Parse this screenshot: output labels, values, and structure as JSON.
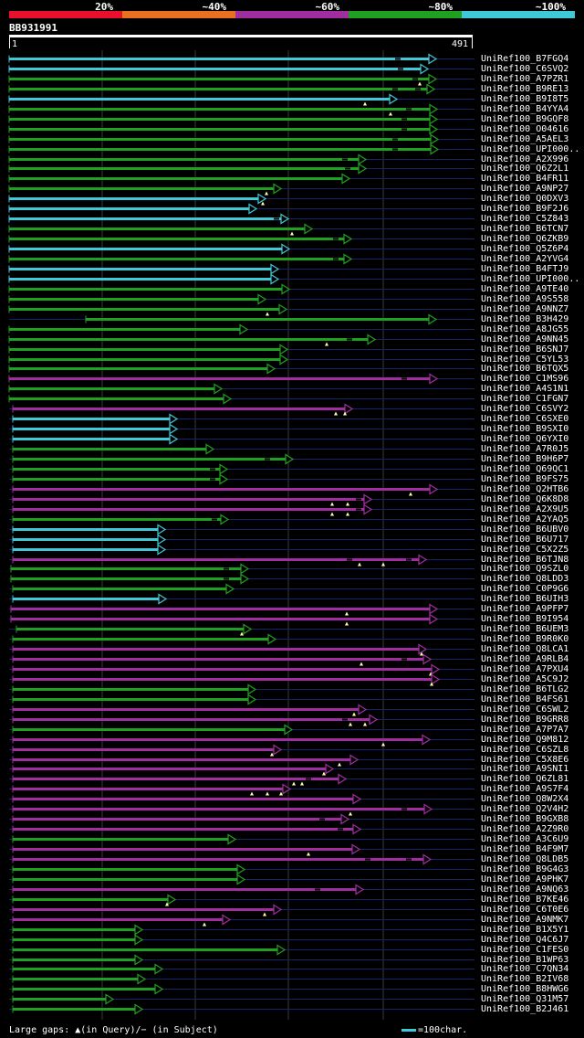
{
  "legend": {
    "labels": [
      "20%",
      "~40%",
      "~60%",
      "~80%",
      "~100%"
    ],
    "colors": [
      "#e8102a",
      "#e87020",
      "#a02ea0",
      "#20a020",
      "#3ec8d8"
    ]
  },
  "query": {
    "name": "BB931991",
    "start": "1",
    "end": "491"
  },
  "footer": {
    "gaps": "Large gaps: ▲(in Query)/− (in Subject)",
    "scale": "=100char."
  },
  "hits": [
    {
      "name": "UniRef100_B7FGQ4",
      "c": 4,
      "s": 10,
      "e": 477,
      "g": [
        433
      ]
    },
    {
      "name": "UniRef100_C6SVQ2",
      "c": 4,
      "s": 10,
      "e": 468,
      "g": [
        436
      ]
    },
    {
      "name": "UniRef100_A7PZR1",
      "c": 3,
      "s": 10,
      "e": 477,
      "g": [
        452
      ],
      "t": [
        460
      ]
    },
    {
      "name": "UniRef100_B9RE13",
      "c": 3,
      "s": 10,
      "e": 475,
      "g": [
        430,
        455
      ]
    },
    {
      "name": "UniRef100_B9I8T5",
      "c": 4,
      "s": 10,
      "e": 434,
      "t": [
        400
      ]
    },
    {
      "name": "UniRef100_B4YYA4",
      "c": 3,
      "s": 10,
      "e": 478,
      "g": [
        445
      ],
      "t": [
        428
      ]
    },
    {
      "name": "UniRef100_B9GQF8",
      "c": 3,
      "s": 10,
      "e": 478,
      "g": [
        440
      ]
    },
    {
      "name": "UniRef100_O04616",
      "c": 3,
      "s": 10,
      "e": 478,
      "g": [
        440
      ]
    },
    {
      "name": "UniRef100_A5AEL3",
      "c": 3,
      "s": 10,
      "e": 479,
      "g": [
        430
      ]
    },
    {
      "name": "UniRef100_UPI000..",
      "c": 3,
      "s": 10,
      "e": 479,
      "g": [
        430
      ]
    },
    {
      "name": "UniRef100_A2X996",
      "c": 3,
      "s": 10,
      "e": 400,
      "g": [
        375
      ]
    },
    {
      "name": "UniRef100_Q6Z2L1",
      "c": 3,
      "s": 10,
      "e": 400,
      "g": [
        378
      ]
    },
    {
      "name": "UniRef100_B4FR11",
      "c": 3,
      "s": 10,
      "e": 382
    },
    {
      "name": "UniRef100_A9NP27",
      "c": 3,
      "s": 10,
      "e": 307,
      "t": [
        292
      ]
    },
    {
      "name": "UniRef100_Q0DXV3",
      "c": 4,
      "s": 10,
      "e": 290,
      "t": [
        288
      ]
    },
    {
      "name": "UniRef100_B9F2J6",
      "c": 4,
      "s": 10,
      "e": 280
    },
    {
      "name": "UniRef100_C5Z843",
      "c": 4,
      "s": 10,
      "e": 315,
      "g": [
        300
      ]
    },
    {
      "name": "UniRef100_B6TCN7",
      "c": 3,
      "s": 10,
      "e": 341,
      "t": [
        320
      ]
    },
    {
      "name": "UniRef100_Q6ZKB9",
      "c": 3,
      "s": 10,
      "e": 384,
      "g": [
        365
      ]
    },
    {
      "name": "UniRef100_Q5Z6P4",
      "c": 4,
      "s": 10,
      "e": 316
    },
    {
      "name": "UniRef100_A2YVG4",
      "c": 3,
      "s": 10,
      "e": 384,
      "g": [
        365
      ]
    },
    {
      "name": "UniRef100_B4FTJ9",
      "c": 4,
      "s": 10,
      "e": 304
    },
    {
      "name": "UniRef100_UPI000..",
      "c": 4,
      "s": 10,
      "e": 304
    },
    {
      "name": "UniRef100_A9TE40",
      "c": 3,
      "s": 10,
      "e": 316
    },
    {
      "name": "UniRef100_A9S558",
      "c": 3,
      "s": 10,
      "e": 290
    },
    {
      "name": "UniRef100_A9NNZ7",
      "c": 3,
      "s": 10,
      "e": 313,
      "t": [
        293
      ]
    },
    {
      "name": "UniRef100_B3H429",
      "c": 3,
      "s": 94,
      "e": 477
    },
    {
      "name": "UniRef100_A8JG55",
      "c": 3,
      "s": 10,
      "e": 270
    },
    {
      "name": "UniRef100_A9NN45",
      "c": 3,
      "s": 10,
      "e": 410,
      "g": [
        380
      ],
      "t": [
        358
      ]
    },
    {
      "name": "UniRef100_B6SNJ7",
      "c": 3,
      "s": 10,
      "e": 314
    },
    {
      "name": "UniRef100_C5YL53",
      "c": 3,
      "s": 10,
      "e": 314
    },
    {
      "name": "UniRef100_B6TQX5",
      "c": 3,
      "s": 10,
      "e": 300
    },
    {
      "name": "UniRef100_C1MS96",
      "c": 2,
      "s": 10,
      "e": 478,
      "g": [
        440
      ]
    },
    {
      "name": "UniRef100_A4S1N1",
      "c": 3,
      "s": 10,
      "e": 242
    },
    {
      "name": "UniRef100_C1FGN7",
      "c": 3,
      "s": 10,
      "e": 252
    },
    {
      "name": "UniRef100_C6SVY2",
      "c": 2,
      "s": 14,
      "e": 385,
      "t": [
        368,
        378
      ]
    },
    {
      "name": "UniRef100_C6SXE0",
      "c": 4,
      "s": 14,
      "e": 193
    },
    {
      "name": "UniRef100_B9SXI0",
      "c": 4,
      "s": 14,
      "e": 193
    },
    {
      "name": "UniRef100_Q6YXI0",
      "c": 4,
      "s": 14,
      "e": 193
    },
    {
      "name": "UniRef100_A7R0J5",
      "c": 3,
      "s": 14,
      "e": 233
    },
    {
      "name": "UniRef100_B9H6P7",
      "c": 3,
      "s": 14,
      "e": 320,
      "g": [
        290
      ]
    },
    {
      "name": "UniRef100_Q69QC1",
      "c": 3,
      "s": 14,
      "e": 248,
      "g": [
        230
      ]
    },
    {
      "name": "UniRef100_B9FS75",
      "c": 3,
      "s": 14,
      "e": 248,
      "g": [
        230
      ]
    },
    {
      "name": "UniRef100_Q2HTB6",
      "c": 2,
      "s": 14,
      "e": 478,
      "t": [
        450
      ]
    },
    {
      "name": "UniRef100_Q6K8D8",
      "c": 2,
      "s": 14,
      "e": 406,
      "g": [
        390
      ],
      "t": [
        364,
        381
      ]
    },
    {
      "name": "UniRef100_A2X9U5",
      "c": 2,
      "s": 14,
      "e": 406,
      "g": [
        390
      ],
      "t": [
        364,
        381
      ]
    },
    {
      "name": "UniRef100_A2YAQ5",
      "c": 3,
      "s": 14,
      "e": 249,
      "g": [
        232
      ]
    },
    {
      "name": "UniRef100_B6UBV0",
      "c": 4,
      "s": 14,
      "e": 180
    },
    {
      "name": "UniRef100_B6U717",
      "c": 4,
      "s": 14,
      "e": 180
    },
    {
      "name": "UniRef100_C5X2Z5",
      "c": 4,
      "s": 14,
      "e": 180
    },
    {
      "name": "UniRef100_B6TJN8",
      "c": 2,
      "s": 14,
      "e": 466,
      "g": [
        380,
        445
      ],
      "t": [
        394,
        420
      ]
    },
    {
      "name": "UniRef100_Q9SZL0",
      "c": 3,
      "s": 12,
      "e": 271,
      "g": [
        245
      ]
    },
    {
      "name": "UniRef100_Q8LDD3",
      "c": 3,
      "s": 12,
      "e": 271,
      "g": [
        245
      ]
    },
    {
      "name": "UniRef100_C0P9G6",
      "c": 3,
      "s": 14,
      "e": 255
    },
    {
      "name": "UniRef100_B6UIH3",
      "c": 4,
      "s": 14,
      "e": 181
    },
    {
      "name": "UniRef100_A9PFP7",
      "c": 2,
      "s": 12,
      "e": 478,
      "t": [
        380
      ]
    },
    {
      "name": "UniRef100_B9I954",
      "c": 2,
      "s": 12,
      "e": 478,
      "t": [
        380
      ]
    },
    {
      "name": "UniRef100_B6UEM3",
      "c": 3,
      "s": 18,
      "e": 274,
      "t": [
        265
      ]
    },
    {
      "name": "UniRef100_B9R0K0",
      "c": 3,
      "s": 14,
      "e": 301
    },
    {
      "name": "UniRef100_Q8LCA1",
      "c": 2,
      "s": 14,
      "e": 466,
      "t": [
        462
      ]
    },
    {
      "name": "UniRef100_A9RLB4",
      "c": 2,
      "s": 14,
      "e": 471,
      "g": [
        440
      ],
      "t": [
        396
      ]
    },
    {
      "name": "UniRef100_A7PXU4",
      "c": 2,
      "s": 14,
      "e": 480,
      "t": [
        472
      ]
    },
    {
      "name": "UniRef100_A5C9J2",
      "c": 2,
      "s": 14,
      "e": 480,
      "t": [
        473
      ]
    },
    {
      "name": "UniRef100_B6TLG2",
      "c": 3,
      "s": 14,
      "e": 279
    },
    {
      "name": "UniRef100_B4FS61",
      "c": 3,
      "s": 14,
      "e": 279
    },
    {
      "name": "UniRef100_C6SWL2",
      "c": 2,
      "s": 14,
      "e": 400,
      "t": [
        388
      ]
    },
    {
      "name": "UniRef100_B9GRR8",
      "c": 2,
      "s": 14,
      "e": 412,
      "g": [
        375
      ],
      "t": [
        384,
        400
      ]
    },
    {
      "name": "UniRef100_A7P7A7",
      "c": 3,
      "s": 14,
      "e": 319
    },
    {
      "name": "UniRef100_Q9M812",
      "c": 2,
      "s": 14,
      "e": 470,
      "t": [
        420
      ]
    },
    {
      "name": "UniRef100_C6SZL8",
      "c": 2,
      "s": 14,
      "e": 307,
      "t": [
        298
      ]
    },
    {
      "name": "UniRef100_C5X8E6",
      "c": 2,
      "s": 14,
      "e": 391,
      "t": [
        372
      ]
    },
    {
      "name": "UniRef100_A9SNI1",
      "c": 2,
      "s": 14,
      "e": 364,
      "t": [
        355
      ]
    },
    {
      "name": "UniRef100_Q6ZL81",
      "c": 2,
      "s": 14,
      "e": 378,
      "g": [
        335
      ],
      "t": [
        322,
        331
      ]
    },
    {
      "name": "UniRef100_A9S7F4",
      "c": 2,
      "s": 14,
      "e": 317,
      "t": [
        276,
        293,
        308
      ]
    },
    {
      "name": "UniRef100_Q8W2X4",
      "c": 2,
      "s": 14,
      "e": 394
    },
    {
      "name": "UniRef100_Q2V4H2",
      "c": 2,
      "s": 14,
      "e": 472,
      "g": [
        440
      ],
      "t": [
        384
      ]
    },
    {
      "name": "UniRef100_B9GXB8",
      "c": 2,
      "s": 14,
      "e": 381,
      "g": [
        350
      ]
    },
    {
      "name": "UniRef100_A2Z9R0",
      "c": 2,
      "s": 14,
      "e": 394,
      "g": [
        370
      ]
    },
    {
      "name": "UniRef100_A3C6U9",
      "c": 3,
      "s": 14,
      "e": 257
    },
    {
      "name": "UniRef100_B4F9M7",
      "c": 2,
      "s": 14,
      "e": 393,
      "t": [
        338
      ]
    },
    {
      "name": "UniRef100_Q8LDB5",
      "c": 2,
      "s": 14,
      "e": 471,
      "g": [
        400,
        445
      ]
    },
    {
      "name": "UniRef100_B9G4G3",
      "c": 3,
      "s": 14,
      "e": 267
    },
    {
      "name": "UniRef100_A9PHK7",
      "c": 3,
      "s": 14,
      "e": 267
    },
    {
      "name": "UniRef100_A9NQ63",
      "c": 2,
      "s": 14,
      "e": 397,
      "g": [
        345
      ]
    },
    {
      "name": "UniRef100_B7KE46",
      "c": 3,
      "s": 14,
      "e": 191,
      "t": [
        183
      ]
    },
    {
      "name": "UniRef100_C6T0E6",
      "c": 2,
      "s": 14,
      "e": 307,
      "t": [
        290
      ]
    },
    {
      "name": "UniRef100_A9NMK7",
      "c": 2,
      "s": 14,
      "e": 251,
      "t": [
        224
      ]
    },
    {
      "name": "UniRef100_B1X5Y1",
      "c": 3,
      "s": 14,
      "e": 155
    },
    {
      "name": "UniRef100_Q4C6J7",
      "c": 3,
      "s": 14,
      "e": 155
    },
    {
      "name": "UniRef100_C1FES0",
      "c": 3,
      "s": 14,
      "e": 311
    },
    {
      "name": "UniRef100_B1WP63",
      "c": 3,
      "s": 14,
      "e": 155
    },
    {
      "name": "UniRef100_C7QN34",
      "c": 3,
      "s": 14,
      "e": 177
    },
    {
      "name": "UniRef100_B2IV68",
      "c": 3,
      "s": 14,
      "e": 158
    },
    {
      "name": "UniRef100_B8HWG6",
      "c": 3,
      "s": 14,
      "e": 177
    },
    {
      "name": "UniRef100_Q31M57",
      "c": 3,
      "s": 14,
      "e": 123
    },
    {
      "name": "UniRef100_B2J461",
      "c": 3,
      "s": 14,
      "e": 155
    }
  ]
}
